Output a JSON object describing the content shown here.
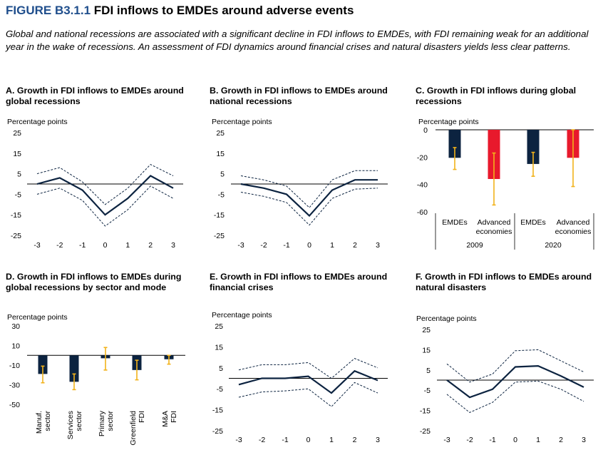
{
  "figure": {
    "number": "FIGURE B3.1.1",
    "title": "FDI inflows to EMDEs around adverse events",
    "subtitle": "Global and national recessions are associated with a significant decline in FDI inflows to EMDEs, with FDI remaining weak for an additional year in the wake of recessions. An assessment of FDI dynamics around financial crises and natural disasters yields less clear patterns."
  },
  "colors": {
    "navy": "#0c2340",
    "red": "#e8192c",
    "gold": "#f2b21b"
  },
  "chart_data": [
    {
      "id": "A",
      "type": "line",
      "title": "A. Growth in FDI inflows to EMDEs around global recessions",
      "ylabel": "Percentage points",
      "ylim": [
        -25,
        25
      ],
      "yticks": [
        25,
        15,
        5,
        -5,
        -15,
        -25
      ],
      "x": [
        -3,
        -2,
        -1,
        0,
        1,
        2,
        3
      ],
      "series": [
        {
          "role": "main",
          "values": [
            0,
            3,
            -3,
            -15,
            -7,
            4,
            -2
          ]
        },
        {
          "role": "upper",
          "values": [
            5,
            8,
            1,
            -10,
            -2,
            9.5,
            4
          ]
        },
        {
          "role": "lower",
          "values": [
            -5,
            -2,
            -8,
            -20.5,
            -12.5,
            -1,
            -7
          ]
        }
      ]
    },
    {
      "id": "B",
      "type": "line",
      "title": "B. Growth in FDI inflows to EMDEs around national recessions",
      "ylabel": "Percentage points",
      "ylim": [
        -25,
        25
      ],
      "yticks": [
        25,
        15,
        5,
        -5,
        -15,
        -25
      ],
      "x": [
        -3,
        -2,
        -1,
        0,
        1,
        2,
        3
      ],
      "series": [
        {
          "role": "main",
          "values": [
            0,
            -2,
            -5,
            -15.5,
            -3,
            2,
            2
          ]
        },
        {
          "role": "upper",
          "values": [
            4,
            2,
            -1,
            -11.5,
            2,
            6.5,
            6.5
          ]
        },
        {
          "role": "lower",
          "values": [
            -4,
            -6,
            -9,
            -20,
            -7,
            -2.5,
            -2
          ]
        }
      ]
    },
    {
      "id": "C",
      "type": "bar",
      "title": "C. Growth in FDI inflows during global recessions",
      "ylabel": "Percentage points",
      "ylim": [
        -60,
        0
      ],
      "yticks": [
        0,
        -20,
        -40,
        -60
      ],
      "categories": [
        "EMDEs",
        "Advanced economies",
        "EMDEs",
        "Advanced economies"
      ],
      "groups": [
        "2009",
        "2020"
      ],
      "values": [
        -20.5,
        -36,
        -25,
        -20.5
      ],
      "err_low": [
        -29,
        -55,
        -34,
        -41.5
      ],
      "err_high": [
        -13,
        -17,
        -16.5,
        0
      ]
    },
    {
      "id": "D",
      "type": "bar",
      "title": "D. Growth in FDI inflows to EMDEs during global recessions by sector and mode",
      "ylabel": "Percentage points",
      "ylim": [
        -50,
        30
      ],
      "yticks": [
        30,
        10,
        -10,
        -30,
        -50
      ],
      "categories": [
        "Manuf. sector",
        "Services sector",
        "Primary sector",
        "Greenfield FDI",
        "M&A FDI"
      ],
      "values": [
        -19,
        -27,
        -3,
        -15,
        -4
      ],
      "err_low": [
        -28,
        -35,
        -15,
        -25,
        -9
      ],
      "err_high": [
        -11,
        -19,
        8,
        -5,
        0
      ]
    },
    {
      "id": "E",
      "type": "line",
      "title": "E. Growth in FDI inflows to EMDEs around financial crises",
      "ylabel": "Percentage points",
      "ylim": [
        -25,
        25
      ],
      "yticks": [
        25,
        15,
        5,
        -5,
        -15,
        -25
      ],
      "x": [
        -3,
        -2,
        -1,
        0,
        1,
        2,
        3
      ],
      "series": [
        {
          "role": "main",
          "values": [
            -3,
            0,
            0,
            1,
            -7,
            3.5,
            -1
          ]
        },
        {
          "role": "upper",
          "values": [
            4,
            6.5,
            6.5,
            7.5,
            0,
            9.5,
            5
          ]
        },
        {
          "role": "lower",
          "values": [
            -9,
            -6.5,
            -6,
            -5,
            -13.5,
            -2,
            -7
          ]
        }
      ]
    },
    {
      "id": "F",
      "type": "line",
      "title": "F. Growth in FDI inflows to EMDEs around natural disasters",
      "ylabel": "Percentage points",
      "ylim": [
        -25,
        25
      ],
      "yticks": [
        25,
        15,
        5,
        -5,
        -15,
        -25
      ],
      "x": [
        -3,
        -2,
        -1,
        0,
        1,
        2,
        3
      ],
      "series": [
        {
          "role": "main",
          "values": [
            0,
            -8.5,
            -4.5,
            6.5,
            7,
            2,
            -3.5
          ]
        },
        {
          "role": "upper",
          "values": [
            8,
            -1,
            3,
            14.5,
            15,
            9.5,
            4
          ]
        },
        {
          "role": "lower",
          "values": [
            -7,
            -16,
            -11,
            -1,
            -0.5,
            -4.5,
            -10.5
          ]
        }
      ]
    }
  ]
}
